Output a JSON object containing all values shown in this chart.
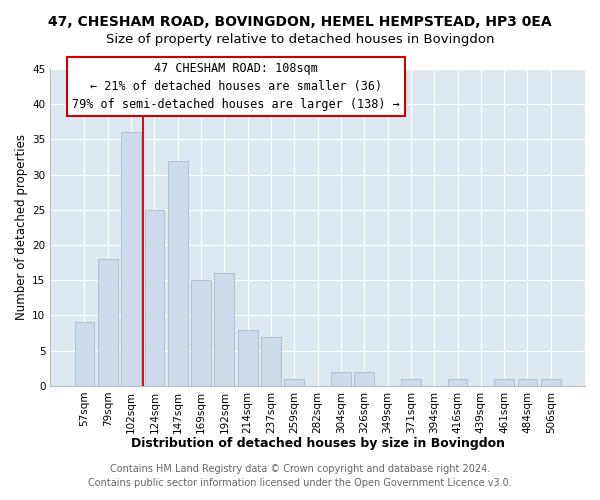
{
  "title": "47, CHESHAM ROAD, BOVINGDON, HEMEL HEMPSTEAD, HP3 0EA",
  "subtitle": "Size of property relative to detached houses in Bovingdon",
  "xlabel": "Distribution of detached houses by size in Bovingdon",
  "ylabel": "Number of detached properties",
  "bar_labels": [
    "57sqm",
    "79sqm",
    "102sqm",
    "124sqm",
    "147sqm",
    "169sqm",
    "192sqm",
    "214sqm",
    "237sqm",
    "259sqm",
    "282sqm",
    "304sqm",
    "326sqm",
    "349sqm",
    "371sqm",
    "394sqm",
    "416sqm",
    "439sqm",
    "461sqm",
    "484sqm",
    "506sqm"
  ],
  "bar_values": [
    9,
    18,
    36,
    25,
    32,
    15,
    16,
    8,
    7,
    1,
    0,
    2,
    2,
    0,
    1,
    0,
    1,
    0,
    1,
    1,
    1
  ],
  "bar_color": "#ccdaeb",
  "bar_edge_color": "#aabcce",
  "property_line_x": 2.5,
  "property_line_label": "47 CHESHAM ROAD: 108sqm",
  "annotation_line1": "← 21% of detached houses are smaller (36)",
  "annotation_line2": "79% of semi-detached houses are larger (138) →",
  "annotation_box_color": "#ffffff",
  "annotation_box_edge": "#cc0000",
  "vertical_line_color": "#cc0000",
  "ylim": [
    0,
    45
  ],
  "yticks": [
    0,
    5,
    10,
    15,
    20,
    25,
    30,
    35,
    40,
    45
  ],
  "footer1": "Contains HM Land Registry data © Crown copyright and database right 2024.",
  "footer2": "Contains public sector information licensed under the Open Government Licence v3.0.",
  "bg_color": "#ffffff",
  "plot_bg_color": "#dde8f0",
  "title_fontsize": 10,
  "subtitle_fontsize": 9.5,
  "xlabel_fontsize": 9,
  "ylabel_fontsize": 8.5,
  "tick_fontsize": 7.5,
  "footer_fontsize": 7,
  "annot_fontsize": 8.5
}
